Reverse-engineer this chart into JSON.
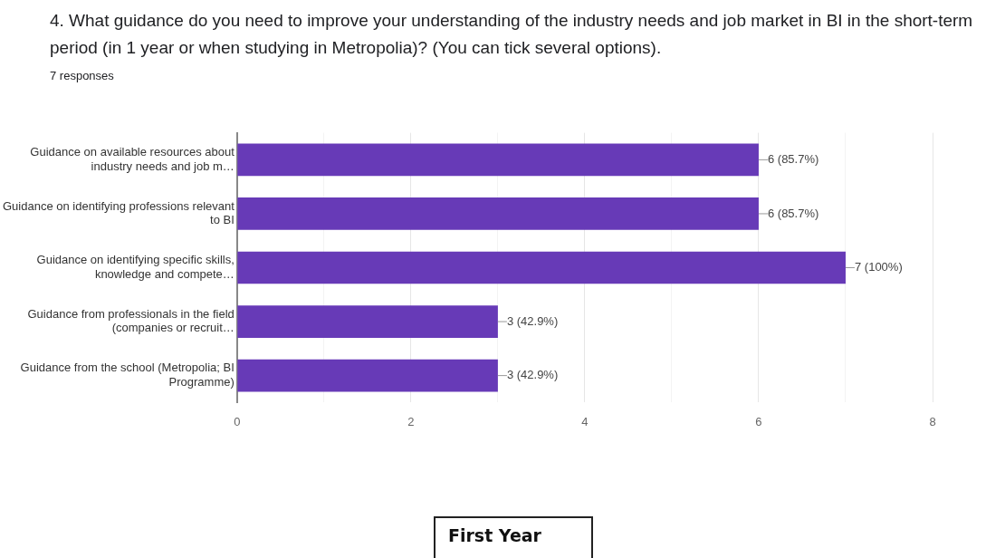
{
  "chart_data": {
    "type": "bar",
    "orientation": "horizontal",
    "title": "4. What guidance do you need to improve your understanding of the industry needs and job market in BI in the short-term period (in 1 year or when studying in Metropolia)? (You can tick several options).",
    "subtitle": "7 responses",
    "categories": [
      "Guidance on available resources about industry needs and job m…",
      "Guidance on identifying professions relevant to BI",
      "Guidance on identifying specific skills, knowledge and compete…",
      "Guidance from professionals in the field (companies or recruit…",
      "Guidance from the school (Metropolia; BI Programme)"
    ],
    "values": [
      6,
      6,
      7,
      3,
      3
    ],
    "value_labels": [
      "6 (85.7%)",
      "6 (85.7%)",
      "7 (100%)",
      "3 (42.9%)",
      "3 (42.9%)"
    ],
    "color": "#673ab7",
    "xlim": [
      0,
      8
    ],
    "xticks": [
      0,
      {
        "value": 1,
        "label": null
      },
      2,
      {
        "value": 3,
        "label": null
      },
      4,
      {
        "value": 5,
        "label": null
      },
      6,
      {
        "value": 7,
        "label": null
      },
      8
    ],
    "grid": "x",
    "legend": false,
    "annotations": [
      "First Year"
    ]
  }
}
